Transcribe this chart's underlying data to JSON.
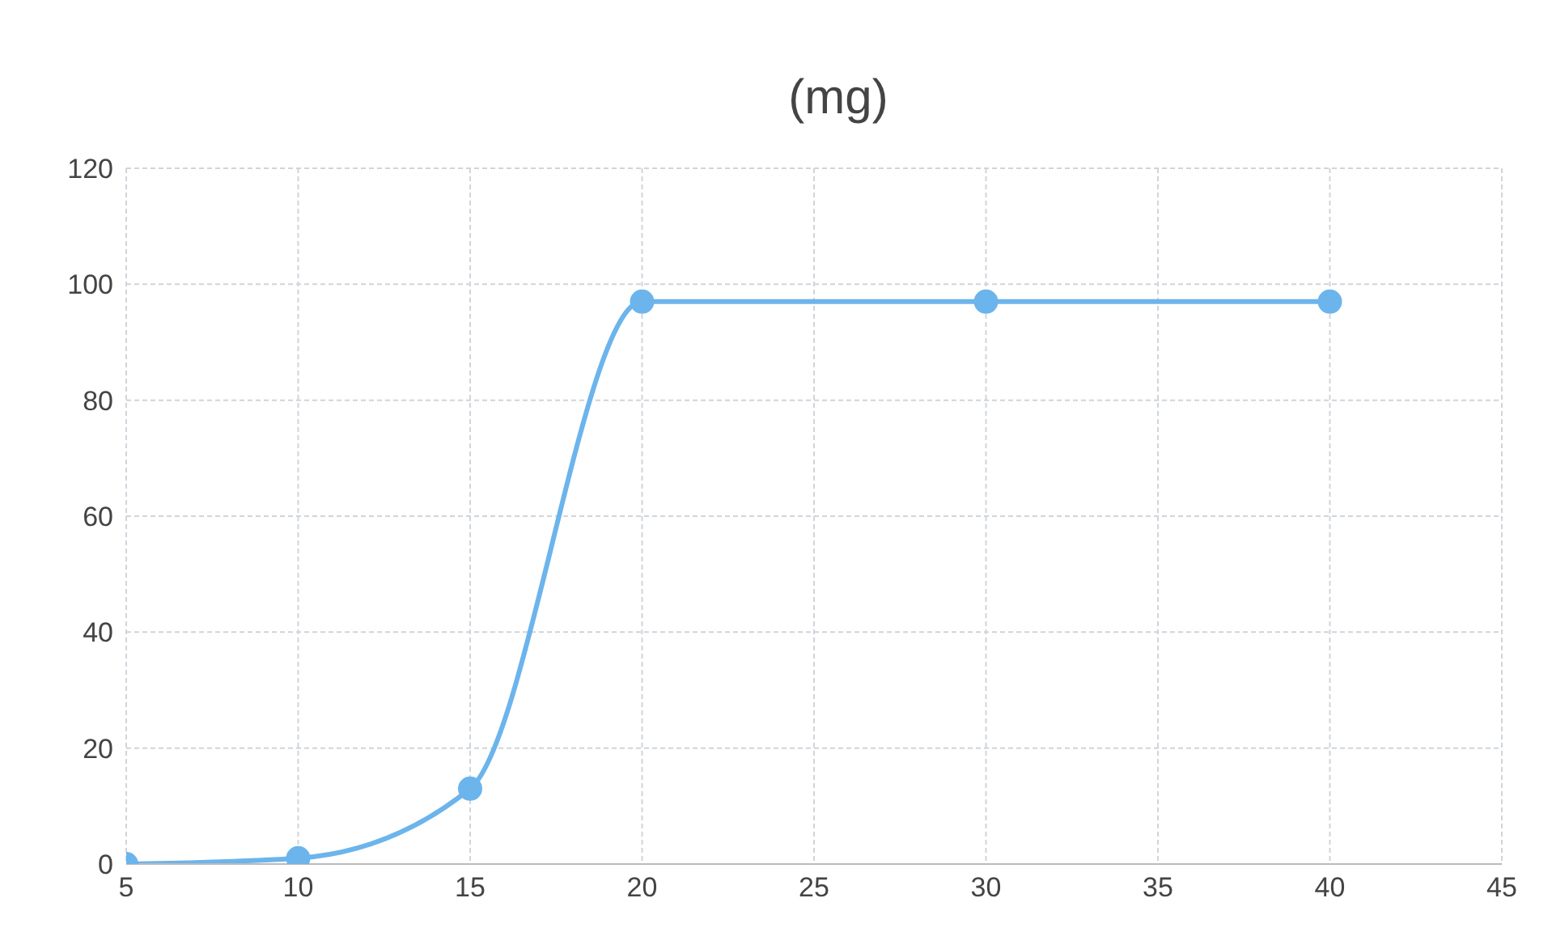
{
  "chart_data": {
    "type": "line",
    "title": "(mg)",
    "x": [
      5,
      10,
      15,
      20,
      30,
      40
    ],
    "series": [
      {
        "color": "#6cb4ec",
        "values": [
          0,
          1,
          13,
          97,
          97,
          97
        ]
      }
    ],
    "xlim": [
      5,
      45
    ],
    "xticks": [
      5,
      10,
      15,
      20,
      25,
      30,
      35,
      40,
      45
    ],
    "ylim": [
      0,
      120
    ],
    "yticks": [
      0,
      20,
      40,
      60,
      80,
      100,
      120
    ],
    "grid": true,
    "marker": "circle",
    "line_style": "solid"
  }
}
